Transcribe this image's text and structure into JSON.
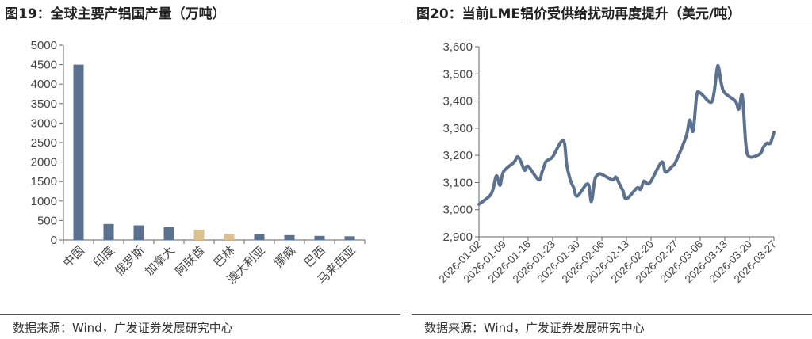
{
  "chart_data": [
    {
      "type": "bar",
      "title": "图19：全球主要产铝国产量（万吨）",
      "source": "数据来源：Wind，广发证券发展研究中心",
      "categories": [
        "中国",
        "印度",
        "俄罗斯",
        "加拿大",
        "阿联酋",
        "巴林",
        "澳大利亚",
        "挪威",
        "巴西",
        "马来西亚"
      ],
      "values": [
        4500,
        410,
        375,
        325,
        260,
        160,
        150,
        125,
        105,
        95
      ],
      "bar_colors": [
        "#5a7290",
        "#5a7290",
        "#5a7290",
        "#5a7290",
        "#dcc08e",
        "#dcc08e",
        "#5a7290",
        "#5a7290",
        "#5a7290",
        "#5a7290"
      ],
      "ylim": [
        0,
        5000
      ],
      "yticks": [
        0,
        500,
        1000,
        1500,
        2000,
        2500,
        3000,
        3500,
        4000,
        4500,
        5000
      ],
      "grid": false
    },
    {
      "type": "line",
      "title": "图20：当前LME铝价受供给扰动再度提升（美元/吨）",
      "source": "数据来源：Wind，广发证券发展研究中心",
      "ylim": [
        2900,
        3600
      ],
      "yticks": [
        "2,900",
        "3,000",
        "3,100",
        "3,200",
        "3,300",
        "3,400",
        "3,500",
        "3,600"
      ],
      "xticks": [
        "2026-01-02",
        "2026-01-09",
        "2026-01-16",
        "2026-01-23",
        "2026-01-30",
        "2026-02-06",
        "2026-02-13",
        "2026-02-20",
        "2026-02-27",
        "2026-03-06",
        "2026-03-13",
        "2026-03-20",
        "2026-03-27"
      ],
      "line_color": "#5a7290",
      "grid": false,
      "x": [
        "2026-01-02",
        "2026-01-05",
        "2026-01-06",
        "2026-01-07",
        "2026-01-08",
        "2026-01-09",
        "2026-01-12",
        "2026-01-13",
        "2026-01-14",
        "2026-01-15",
        "2026-01-16",
        "2026-01-19",
        "2026-01-20",
        "2026-01-21",
        "2026-01-22",
        "2026-01-23",
        "2026-01-26",
        "2026-01-27",
        "2026-01-28",
        "2026-01-29",
        "2026-01-30",
        "2026-02-02",
        "2026-02-03",
        "2026-02-04",
        "2026-02-05",
        "2026-02-06",
        "2026-02-09",
        "2026-02-10",
        "2026-02-11",
        "2026-02-12",
        "2026-02-13",
        "2026-02-16",
        "2026-02-17",
        "2026-02-18",
        "2026-02-19",
        "2026-02-20",
        "2026-02-23",
        "2026-02-24",
        "2026-02-25",
        "2026-02-26",
        "2026-02-27",
        "2026-03-02",
        "2026-03-03",
        "2026-03-04",
        "2026-03-05",
        "2026-03-06",
        "2026-03-09",
        "2026-03-10",
        "2026-03-11",
        "2026-03-12",
        "2026-03-13",
        "2026-03-16",
        "2026-03-17",
        "2026-03-18",
        "2026-03-19",
        "2026-03-20",
        "2026-03-23",
        "2026-03-24",
        "2026-03-25",
        "2026-03-26",
        "2026-03-27"
      ],
      "values": [
        3020,
        3050,
        3075,
        3125,
        3090,
        3140,
        3175,
        3195,
        3175,
        3145,
        3160,
        3110,
        3140,
        3175,
        3185,
        3195,
        3255,
        3165,
        3110,
        3080,
        3050,
        3095,
        3030,
        3110,
        3130,
        3130,
        3110,
        3120,
        3095,
        3070,
        3040,
        3080,
        3075,
        3105,
        3095,
        3105,
        3175,
        3140,
        3145,
        3160,
        3175,
        3270,
        3330,
        3290,
        3420,
        3430,
        3395,
        3435,
        3530,
        3465,
        3430,
        3400,
        3370,
        3420,
        3240,
        3195,
        3205,
        3230,
        3245,
        3245,
        3285
      ]
    }
  ]
}
